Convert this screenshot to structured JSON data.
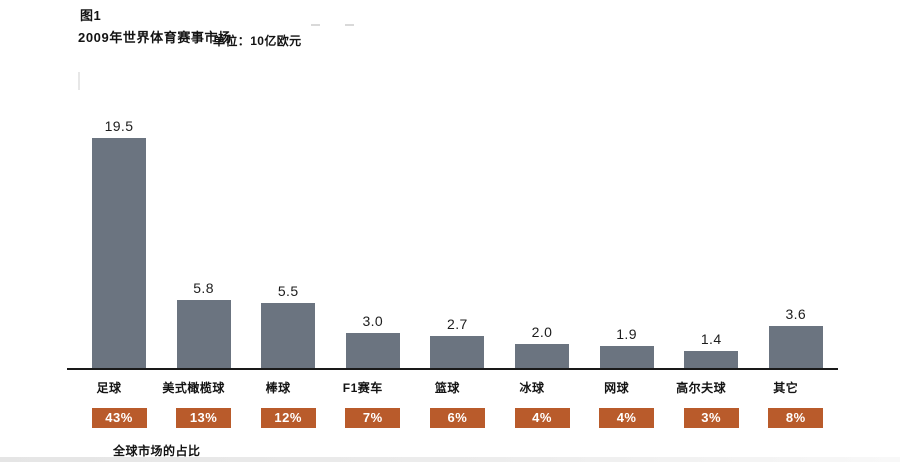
{
  "header": {
    "figure_label": "图1",
    "title": "2009年世界体育赛事市场",
    "unit": "单位：10亿欧元"
  },
  "chart_data": {
    "type": "bar",
    "title": "2009年世界体育赛事市场",
    "unit_label": "单位：10亿欧元",
    "categories": [
      "足球",
      "美式橄榄球",
      "棒球",
      "F1赛车",
      "篮球",
      "冰球",
      "网球",
      "高尔夫球",
      "其它"
    ],
    "values": [
      19.5,
      5.8,
      5.5,
      3.0,
      2.7,
      2.0,
      1.9,
      1.4,
      3.6
    ],
    "value_labels": [
      "19.5",
      "5.8",
      "5.5",
      "3.0",
      "2.7",
      "2.0",
      "1.9",
      "1.4",
      "3.6"
    ],
    "percent_labels": [
      "43%",
      "13%",
      "12%",
      "7%",
      "6%",
      "4%",
      "4%",
      "3%",
      "8%"
    ],
    "ylim": [
      0,
      20
    ],
    "grid": false,
    "legend": false,
    "bar_color": "#6b7480",
    "percent_box_color": "#b95b2b",
    "axis_color": "#1a1a1a"
  },
  "footer": {
    "note": "全球市场的占比"
  }
}
